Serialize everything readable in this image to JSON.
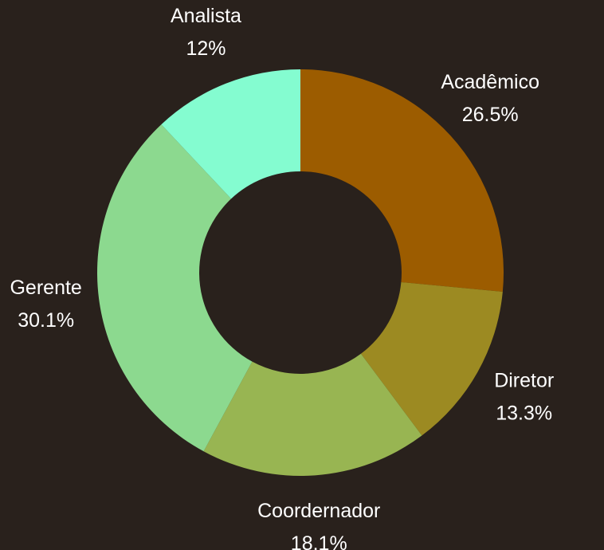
{
  "chart_data": {
    "type": "donut",
    "categories": [
      "Acadêmico",
      "Diretor",
      "Coordernador",
      "Gerente",
      "Analista"
    ],
    "values": [
      26.5,
      13.3,
      18.1,
      30.1,
      12
    ],
    "value_labels": [
      "26.5%",
      "13.3%",
      "18.1%",
      "30.1%",
      "12%"
    ],
    "colors": [
      "#9c5c00",
      "#9c8a22",
      "#98b552",
      "#8cd98f",
      "#84fcd0"
    ]
  }
}
